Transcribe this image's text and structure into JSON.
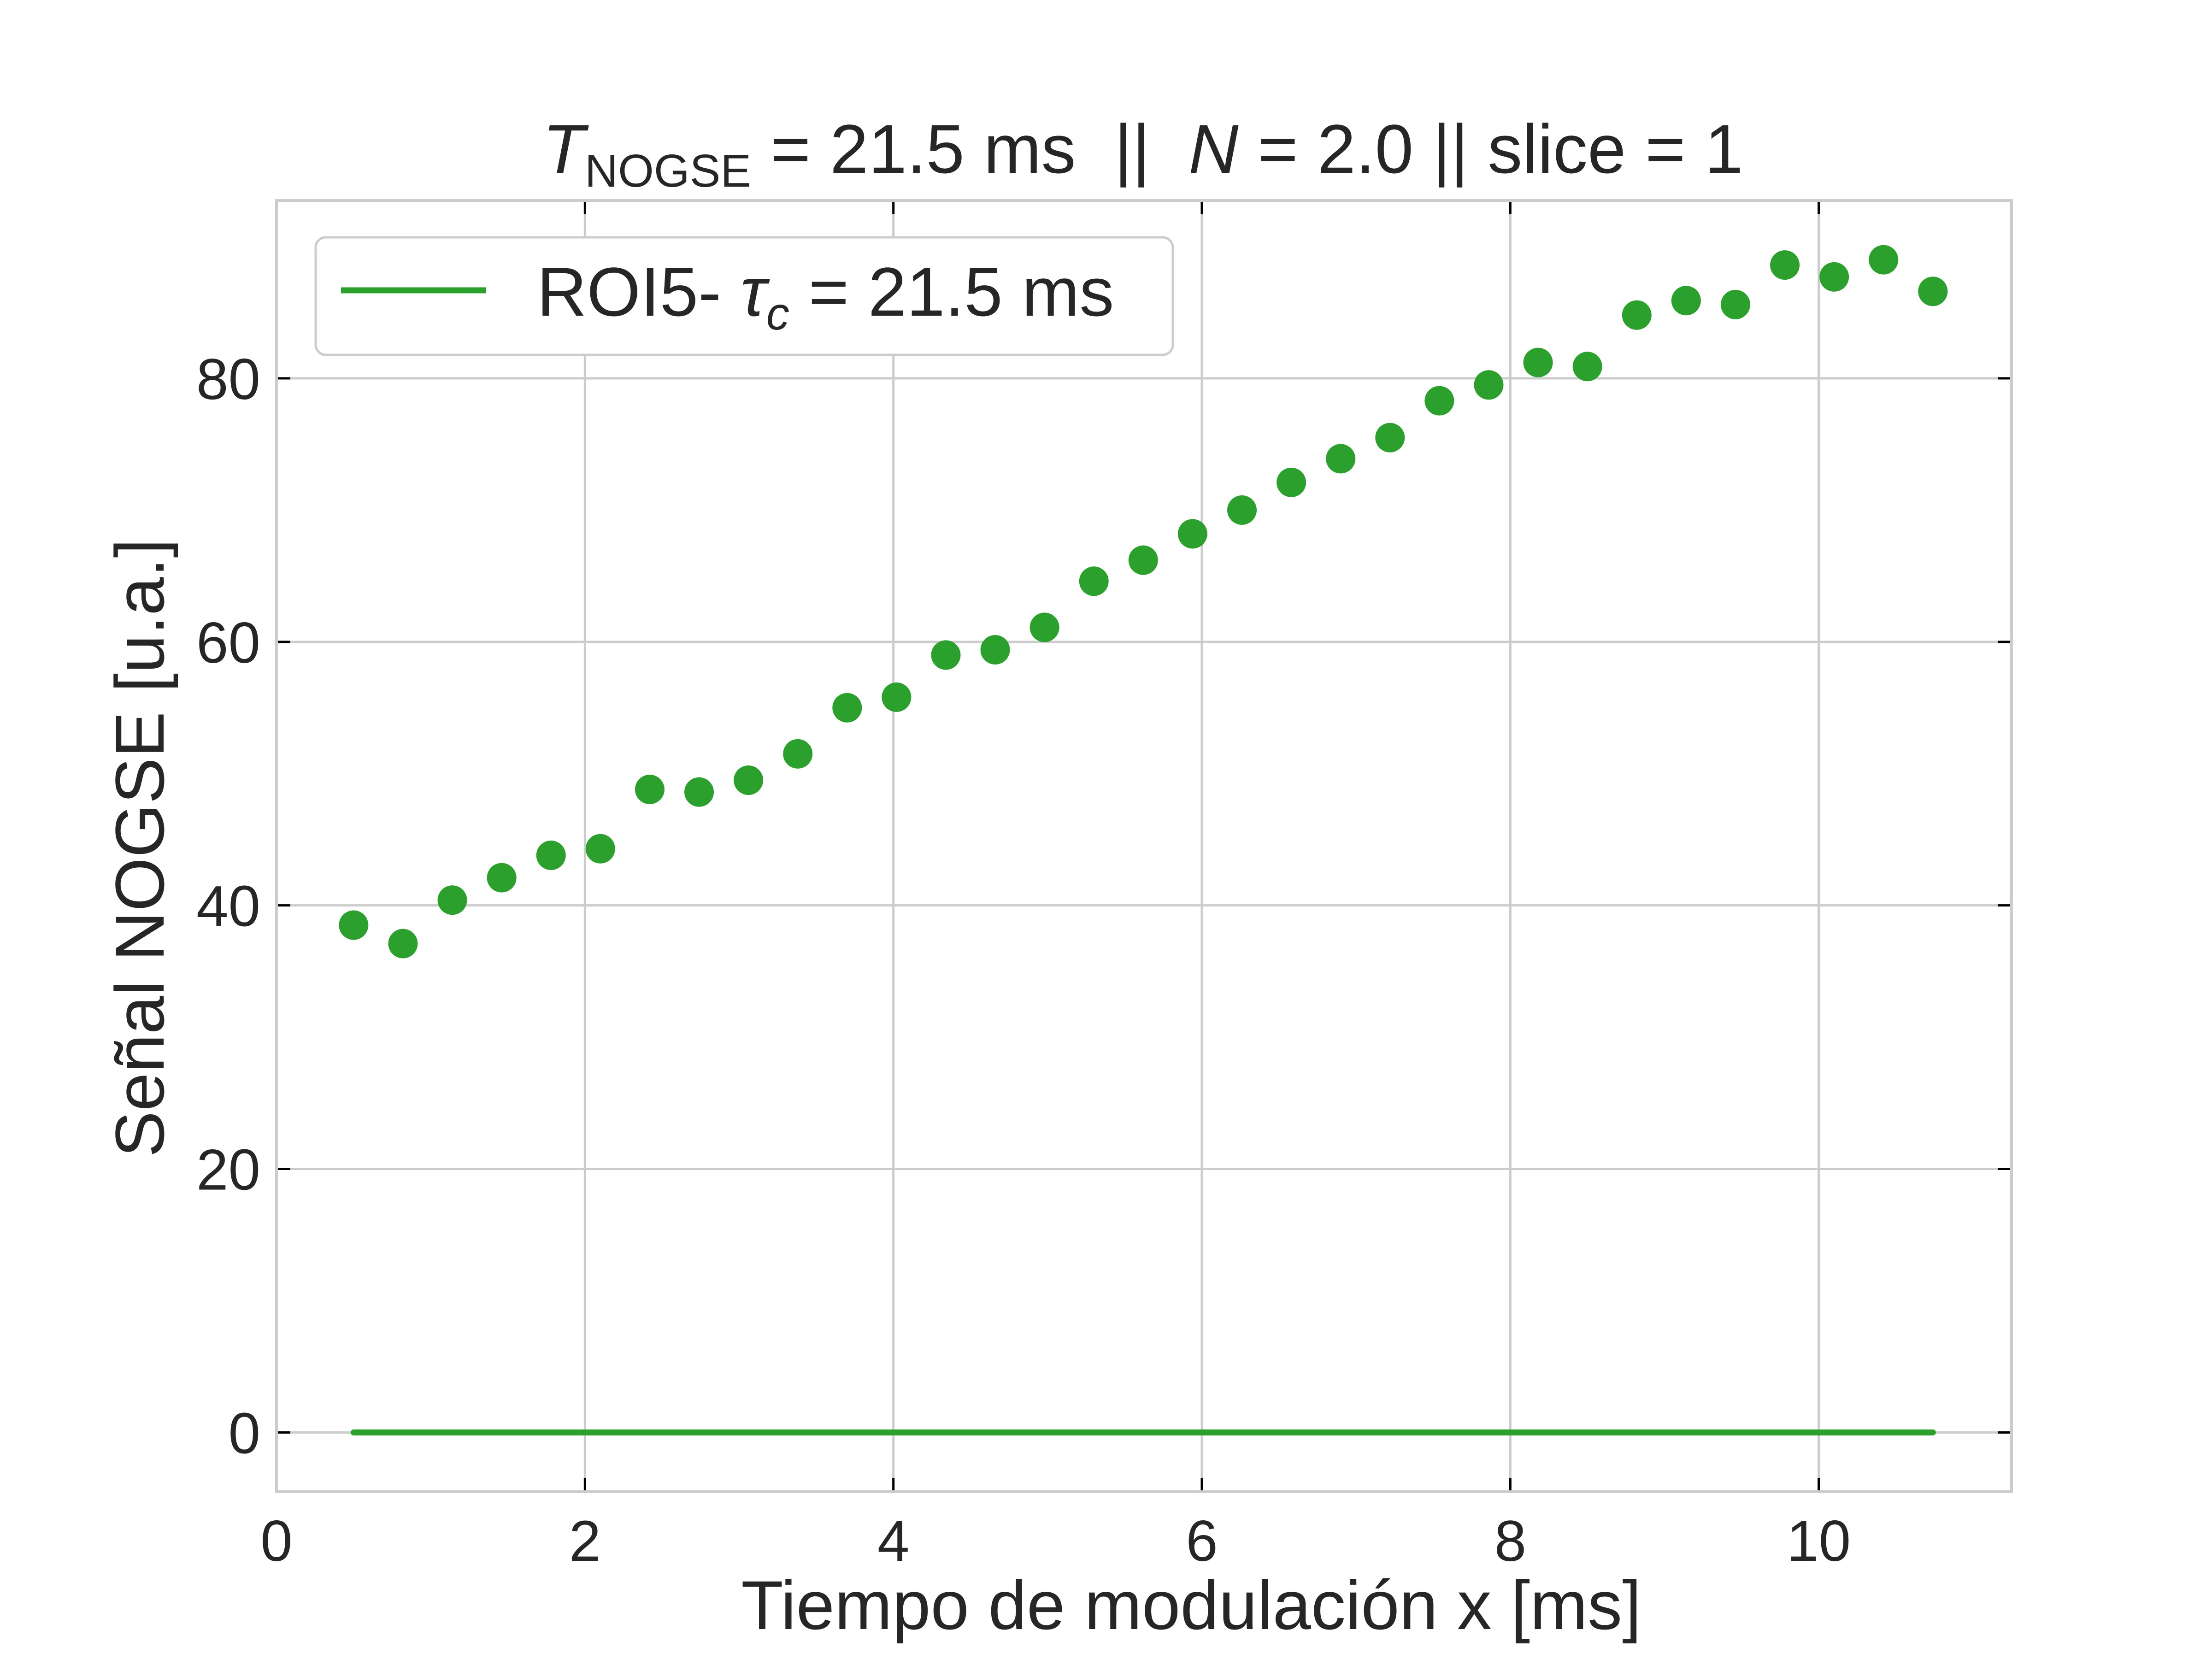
{
  "chart_data": {
    "type": "scatter",
    "title": {
      "t_symbol": "T",
      "t_subscript": "NOGSE",
      "t_value": " = 21.5 ms  ||  ",
      "n_symbol": "N",
      "n_value": " = 2.0 || slice = 1"
    },
    "xlabel": "Tiempo de modulación x [ms]",
    "ylabel": "Señal NOGSE [u.a.]",
    "xlim": [
      0,
      11.25
    ],
    "ylim": [
      -4.5,
      93.5
    ],
    "xticks": [
      0,
      2,
      4,
      6,
      8,
      10
    ],
    "yticks": [
      0,
      20,
      40,
      60,
      80
    ],
    "grid": true,
    "legend": {
      "placement": "top-left",
      "entries": [
        {
          "prefix": "ROI5- ",
          "symbol": "τ",
          "subscript": "c",
          "suffix": " = 21.5 ms",
          "color": "#2ca02c",
          "marker": "line"
        }
      ]
    },
    "color": "#2ca02c",
    "series": [
      {
        "kind": "points",
        "x": [
          0.5,
          0.82,
          1.14,
          1.46,
          1.78,
          2.1,
          2.42,
          2.74,
          3.06,
          3.38,
          3.7,
          4.02,
          4.34,
          4.66,
          4.98,
          5.3,
          5.62,
          5.94,
          6.26,
          6.58,
          6.9,
          7.22,
          7.54,
          7.86,
          8.18,
          8.5,
          8.82,
          9.14,
          9.46,
          9.78,
          10.1,
          10.42,
          10.74
        ],
        "y": [
          38.5,
          37.1,
          40.4,
          42.1,
          43.8,
          44.3,
          48.8,
          48.6,
          49.5,
          51.5,
          55.0,
          55.8,
          59.0,
          59.4,
          61.1,
          64.6,
          66.2,
          68.2,
          70.0,
          72.1,
          73.9,
          75.5,
          78.3,
          79.5,
          81.2,
          80.9,
          84.8,
          85.9,
          85.6,
          88.6,
          87.7,
          89.0,
          86.6
        ]
      },
      {
        "name": "ROI5- τc = 21.5 ms",
        "kind": "line",
        "x": [
          0.5,
          0.82,
          1.14,
          1.46,
          1.78,
          2.1,
          2.42,
          2.74,
          3.06,
          3.38,
          3.7,
          4.02,
          4.34,
          4.66,
          4.98,
          5.3,
          5.62,
          5.94,
          6.26,
          6.58,
          6.9,
          7.22,
          7.54,
          7.86,
          8.18,
          8.5,
          8.82,
          9.14,
          9.46,
          9.78,
          10.1,
          10.42,
          10.74
        ],
        "y": [
          0,
          0,
          0,
          0,
          0,
          0,
          0,
          0,
          0,
          0,
          0,
          0,
          0,
          0,
          0,
          0,
          0,
          0,
          0,
          0,
          0,
          0,
          0,
          0,
          0,
          0,
          0,
          0,
          0,
          0,
          0,
          0,
          0
        ]
      }
    ]
  }
}
